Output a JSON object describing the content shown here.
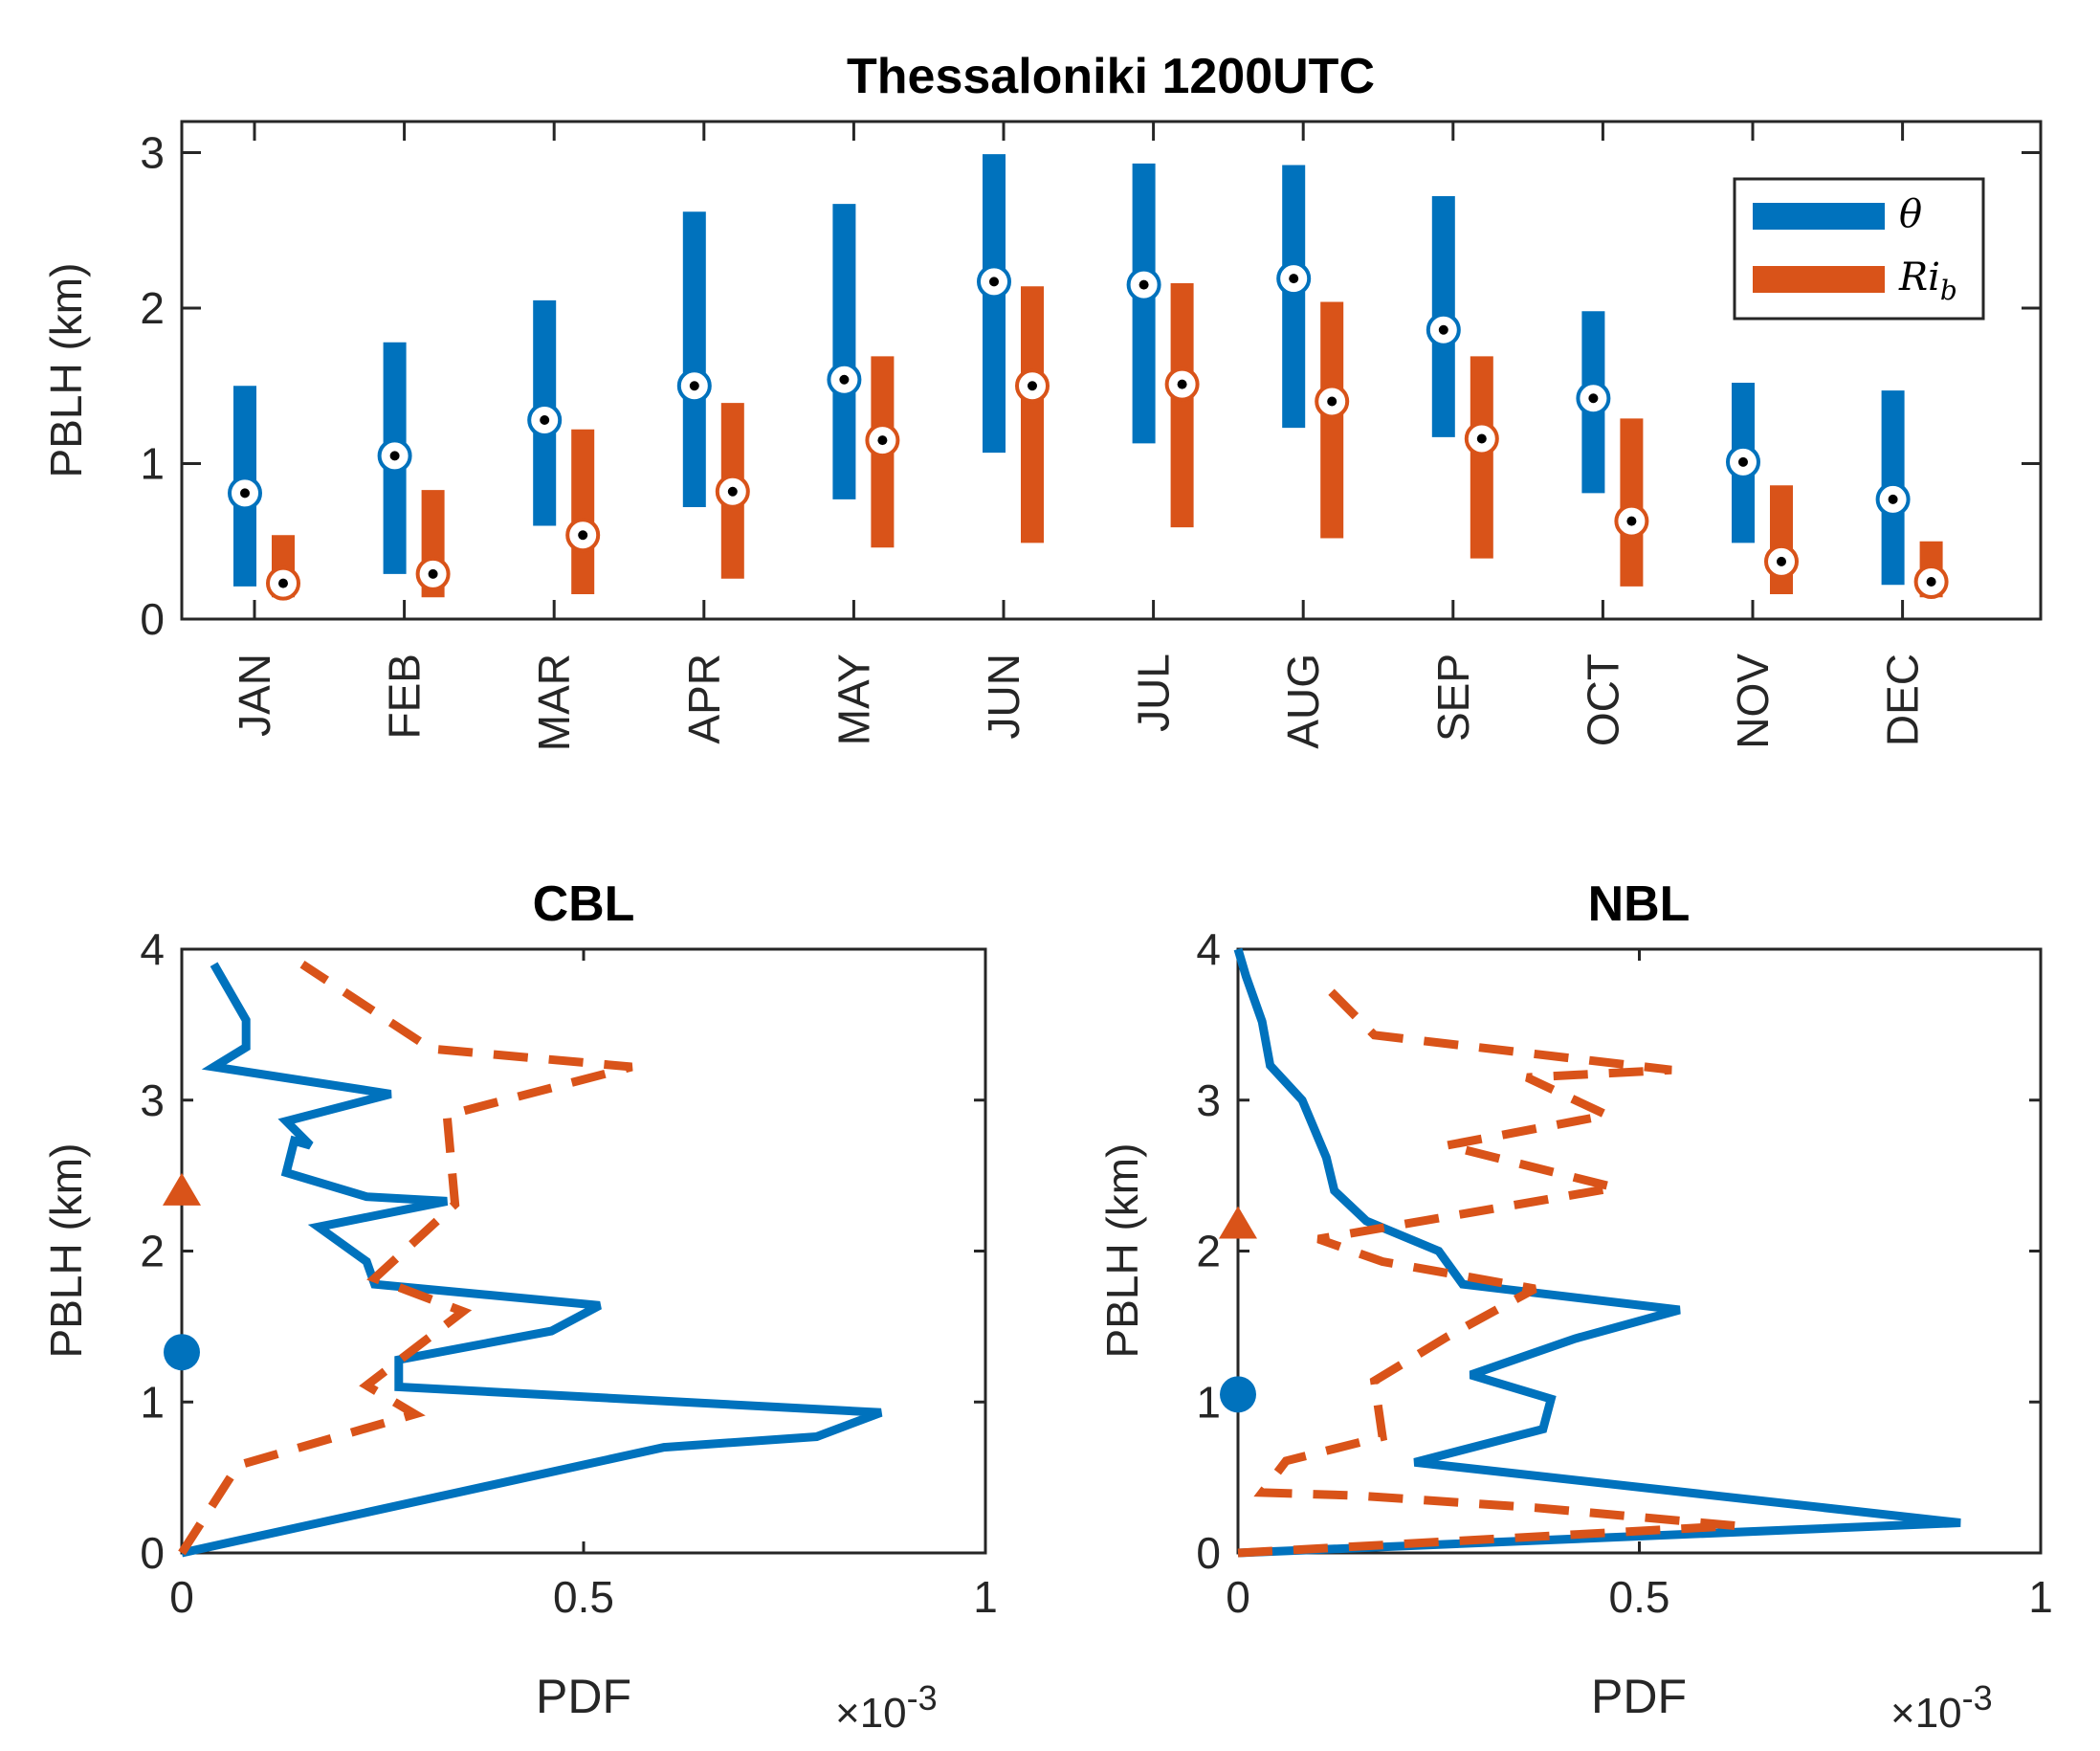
{
  "chart_data": [
    {
      "type": "bar",
      "subtype": "range-bars-with-median-markers",
      "title": "Thessaloniki 1200UTC",
      "xlabel": "",
      "ylabel": "PBLH (km)",
      "ylim": [
        0,
        3.2
      ],
      "yticks": [
        "0",
        "1",
        "2",
        "3"
      ],
      "categories": [
        "JAN",
        "FEB",
        "MAR",
        "APR",
        "MAY",
        "JUN",
        "JUL",
        "AUG",
        "SEP",
        "OCT",
        "NOV",
        "DEC"
      ],
      "legend": {
        "placement": "top-right",
        "theta_label": "θ",
        "rib_label_main": "Ri",
        "rib_label_sub": "b"
      },
      "series": [
        {
          "name": "θ",
          "color": "#0072BD",
          "low": [
            0.21,
            0.29,
            0.6,
            0.72,
            0.77,
            1.07,
            1.13,
            1.23,
            1.17,
            0.81,
            0.49,
            0.22
          ],
          "high": [
            1.5,
            1.78,
            2.05,
            2.62,
            2.67,
            2.99,
            2.93,
            2.92,
            2.72,
            1.98,
            1.52,
            1.47
          ],
          "median": [
            0.81,
            1.05,
            1.28,
            1.5,
            1.54,
            2.17,
            2.15,
            2.19,
            1.86,
            1.42,
            1.01,
            0.77
          ]
        },
        {
          "name": "Ri_b",
          "color": "#D95319",
          "low": [
            0.14,
            0.14,
            0.16,
            0.26,
            0.46,
            0.49,
            0.59,
            0.52,
            0.39,
            0.21,
            0.16,
            0.14
          ],
          "high": [
            0.54,
            0.83,
            1.22,
            1.39,
            1.69,
            2.14,
            2.16,
            2.04,
            1.69,
            1.29,
            0.86,
            0.5
          ],
          "median": [
            0.23,
            0.29,
            0.54,
            0.82,
            1.15,
            1.5,
            1.51,
            1.4,
            1.16,
            0.63,
            0.37,
            0.24
          ]
        }
      ]
    },
    {
      "type": "line",
      "title": "CBL",
      "xlabel": "PDF",
      "ylabel": "PBLH (km)",
      "xlim": [
        0,
        0.001
      ],
      "ylim": [
        0,
        4
      ],
      "xticks": [
        "0",
        "0.5",
        "1"
      ],
      "yticks": [
        "0",
        "1",
        "2",
        "3",
        "4"
      ],
      "x_multiplier_base": "×10",
      "x_multiplier_exp": "-3",
      "series": [
        {
          "name": "θ",
          "color": "#0072BD",
          "style": "solid",
          "points": [
            [
              0.0,
              0.0
            ],
            [
              0.0006,
              0.7
            ],
            [
              0.00079,
              0.77
            ],
            [
              0.00087,
              0.93
            ],
            [
              0.00027,
              1.1
            ],
            [
              0.00027,
              1.28
            ],
            [
              0.00046,
              1.47
            ],
            [
              0.00052,
              1.64
            ],
            [
              0.00024,
              1.78
            ],
            [
              0.00023,
              1.93
            ],
            [
              0.00017,
              2.16
            ],
            [
              0.00033,
              2.33
            ],
            [
              0.00023,
              2.36
            ],
            [
              0.00013,
              2.52
            ],
            [
              0.00014,
              2.73
            ],
            [
              0.00016,
              2.7
            ],
            [
              0.00013,
              2.86
            ],
            [
              0.00026,
              3.04
            ],
            [
              4e-05,
              3.22
            ],
            [
              8e-05,
              3.35
            ],
            [
              8e-05,
              3.53
            ],
            [
              4e-05,
              3.9
            ]
          ]
        },
        {
          "name": "Ri_b",
          "color": "#D95319",
          "style": "dashed",
          "points": [
            [
              0.0,
              0.0
            ],
            [
              7e-05,
              0.58
            ],
            [
              0.00029,
              0.92
            ],
            [
              0.00023,
              1.11
            ],
            [
              0.00035,
              1.6
            ],
            [
              0.00024,
              1.82
            ],
            [
              0.00034,
              2.31
            ],
            [
              0.00033,
              2.9
            ],
            [
              0.00056,
              3.22
            ],
            [
              0.00031,
              3.34
            ],
            [
              0.00015,
              3.9
            ]
          ]
        }
      ],
      "markers": [
        {
          "series": "θ",
          "shape": "circle",
          "y": 1.33,
          "color": "#0072BD"
        },
        {
          "series": "Ri_b",
          "shape": "triangle",
          "y": 2.41,
          "color": "#D95319"
        }
      ]
    },
    {
      "type": "line",
      "title": "NBL",
      "xlabel": "PDF",
      "ylabel": "PBLH (km)",
      "xlim": [
        0,
        0.001
      ],
      "ylim": [
        0,
        4
      ],
      "xticks": [
        "0",
        "0.5",
        "1"
      ],
      "yticks": [
        "0",
        "1",
        "2",
        "3",
        "4"
      ],
      "x_multiplier_base": "×10",
      "x_multiplier_exp": "-3",
      "series": [
        {
          "name": "θ",
          "color": "#0072BD",
          "style": "solid",
          "points": [
            [
              0.0,
              0.0
            ],
            [
              0.0009,
              0.2
            ],
            [
              0.00022,
              0.6
            ],
            [
              0.00038,
              0.82
            ],
            [
              0.00039,
              1.02
            ],
            [
              0.00029,
              1.18
            ],
            [
              0.00042,
              1.42
            ],
            [
              0.00055,
              1.61
            ],
            [
              0.00028,
              1.78
            ],
            [
              0.00025,
              2.0
            ],
            [
              0.00016,
              2.2
            ],
            [
              0.00012,
              2.4
            ],
            [
              0.00011,
              2.62
            ],
            [
              8e-05,
              3.0
            ],
            [
              4e-05,
              3.23
            ],
            [
              3e-05,
              3.52
            ],
            [
              1e-05,
              3.82
            ],
            [
              0.0,
              4.0
            ]
          ]
        },
        {
          "name": "Ri_b",
          "color": "#D95319",
          "style": "dashed",
          "points": [
            [
              0.0,
              0.0
            ],
            [
              0.00062,
              0.18
            ],
            [
              0.00037,
              0.3
            ],
            [
              0.00015,
              0.38
            ],
            [
              3e-05,
              0.4
            ],
            [
              6e-05,
              0.61
            ],
            [
              0.00018,
              0.77
            ],
            [
              0.00017,
              1.14
            ],
            [
              0.00026,
              1.43
            ],
            [
              0.00037,
              1.75
            ],
            [
              0.00018,
              1.93
            ],
            [
              0.0001,
              2.08
            ],
            [
              0.00047,
              2.42
            ],
            [
              0.00026,
              2.7
            ],
            [
              0.00046,
              2.9
            ],
            [
              0.00036,
              3.15
            ],
            [
              0.00054,
              3.2
            ],
            [
              0.00017,
              3.43
            ],
            [
              0.00011,
              3.75
            ]
          ]
        }
      ],
      "markers": [
        {
          "series": "θ",
          "shape": "circle",
          "y": 1.05,
          "color": "#0072BD"
        },
        {
          "series": "Ri_b",
          "shape": "triangle",
          "y": 2.19,
          "color": "#D95319"
        }
      ]
    }
  ]
}
